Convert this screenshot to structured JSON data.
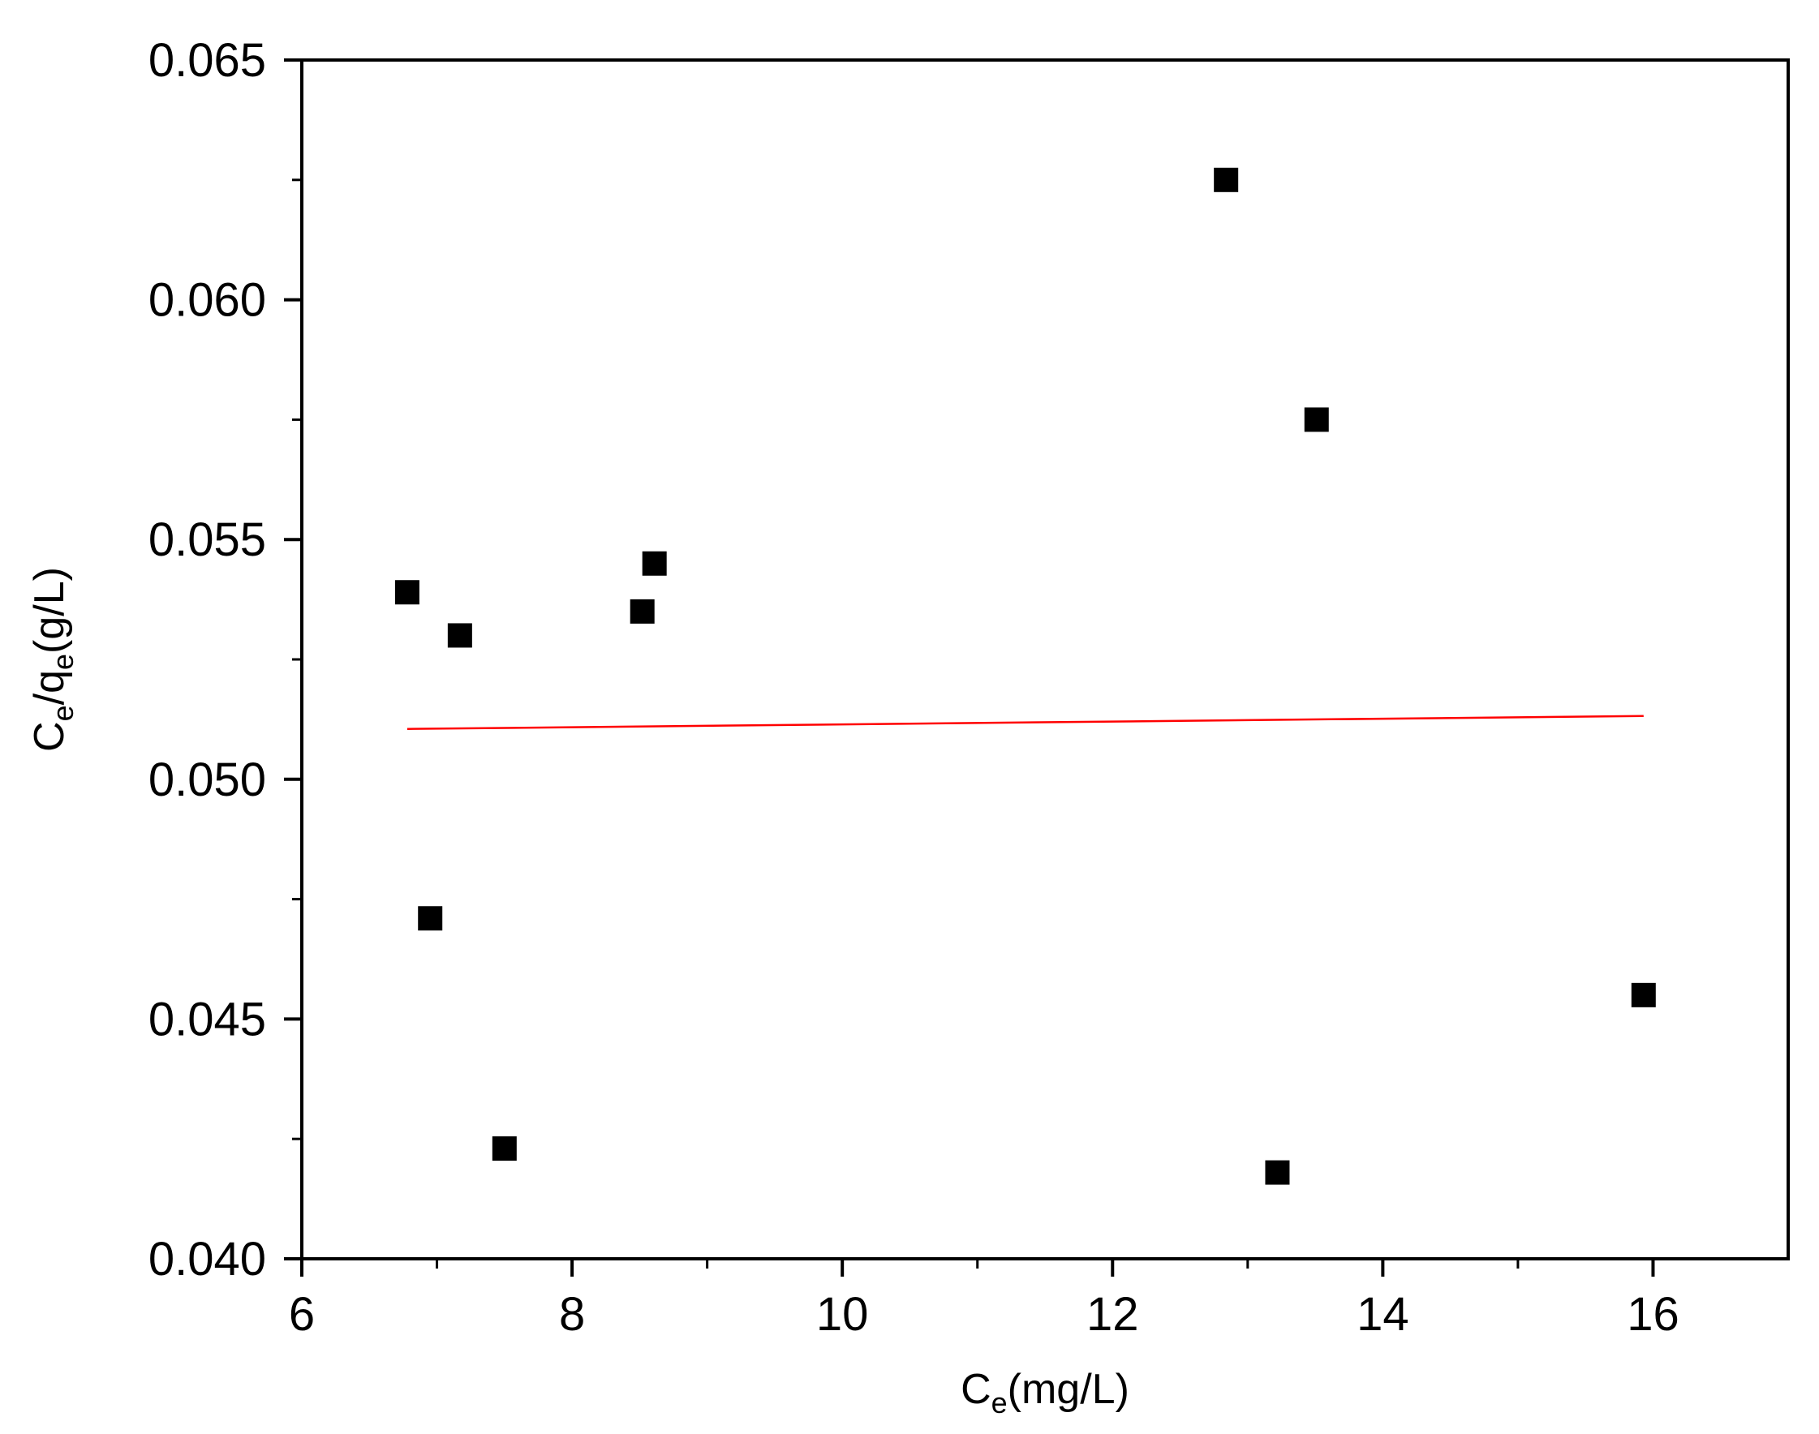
{
  "chart_data": {
    "type": "scatter",
    "title": "",
    "xlabel": {
      "main": "C",
      "sub": "e",
      "rest": "(mg/L)"
    },
    "ylabel": {
      "parts": [
        {
          "text": "C"
        },
        {
          "text": "e",
          "sub": true
        },
        {
          "text": "/q"
        },
        {
          "text": "e",
          "sub": true
        },
        {
          "text": "(g/L)"
        }
      ]
    },
    "xlim": [
      6,
      17
    ],
    "ylim": [
      0.04,
      0.065
    ],
    "xticks": [
      {
        "value": 6,
        "label": "6"
      },
      {
        "value": 8,
        "label": "8"
      },
      {
        "value": 10,
        "label": "10"
      },
      {
        "value": 12,
        "label": "12"
      },
      {
        "value": 14,
        "label": "14"
      },
      {
        "value": 16,
        "label": "16"
      }
    ],
    "yticks": [
      {
        "value": 0.04,
        "label": "0.040"
      },
      {
        "value": 0.045,
        "label": "0.045"
      },
      {
        "value": 0.05,
        "label": "0.050"
      },
      {
        "value": 0.055,
        "label": "0.055"
      },
      {
        "value": 0.06,
        "label": "0.060"
      },
      {
        "value": 0.065,
        "label": "0.065"
      }
    ],
    "grid": false,
    "legend": "none",
    "series": [
      {
        "marker": "square",
        "color": "#000000",
        "points": [
          {
            "x": 6.78,
            "y": 0.0539
          },
          {
            "x": 6.95,
            "y": 0.0471
          },
          {
            "x": 7.17,
            "y": 0.053
          },
          {
            "x": 7.5,
            "y": 0.0423
          },
          {
            "x": 8.52,
            "y": 0.0535
          },
          {
            "x": 8.61,
            "y": 0.0545
          },
          {
            "x": 12.84,
            "y": 0.0625
          },
          {
            "x": 13.22,
            "y": 0.0418
          },
          {
            "x": 13.51,
            "y": 0.0575
          },
          {
            "x": 15.93,
            "y": 0.0455
          }
        ]
      }
    ],
    "fit_line": {
      "color": "#ff0000",
      "points": [
        {
          "x": 6.78,
          "y": 0.05105
        },
        {
          "x": 15.93,
          "y": 0.05132
        }
      ]
    }
  }
}
